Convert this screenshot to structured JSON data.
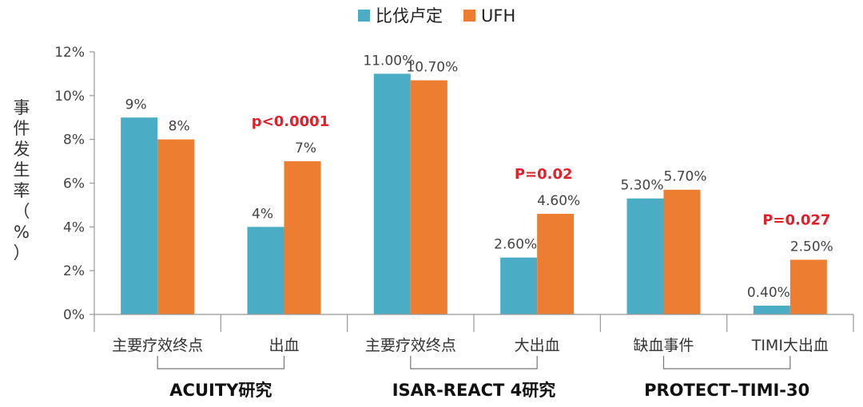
{
  "chart_data": {
    "type": "bar",
    "categories": [
      "主要疗效终点",
      "出血",
      "主要疗效终点",
      "大出血",
      "缺血事件",
      "TIMI大出血"
    ],
    "series": [
      {
        "name": "比伐卢定",
        "color": "#4bacc6",
        "values": [
          9,
          4,
          11.0,
          2.6,
          5.3,
          0.4
        ],
        "labels": [
          "9%",
          "4%",
          "11.00%",
          "2.60%",
          "5.30%",
          "0.40%"
        ]
      },
      {
        "name": "UFH",
        "color": "#ed7d31",
        "values": [
          8,
          7,
          10.7,
          4.6,
          5.7,
          2.5
        ],
        "labels": [
          "8%",
          "7%",
          "10.70%",
          "4.60%",
          "5.70%",
          "2.50%"
        ]
      }
    ],
    "ylabel": "事件发生率（%）",
    "ylim": [
      0,
      12
    ],
    "yticks": [
      "0%",
      "2%",
      "4%",
      "6%",
      "8%",
      "10%",
      "12%"
    ],
    "groups": [
      {
        "label": "ACUITY研究",
        "categories": [
          0,
          1
        ]
      },
      {
        "label": "ISAR-REACT 4研究",
        "categories": [
          2,
          3
        ]
      },
      {
        "label": "PROTECT–TIMI-30",
        "categories": [
          4,
          5
        ]
      }
    ],
    "annotations": [
      {
        "category": 1,
        "text": "p<0.0001",
        "color": "#e0202b"
      },
      {
        "category": 3,
        "text": "P=0.02",
        "color": "#e0202b"
      },
      {
        "category": 5,
        "text": "P=0.027",
        "color": "#e0202b"
      }
    ],
    "legend_position": "top-center",
    "grid": false
  }
}
